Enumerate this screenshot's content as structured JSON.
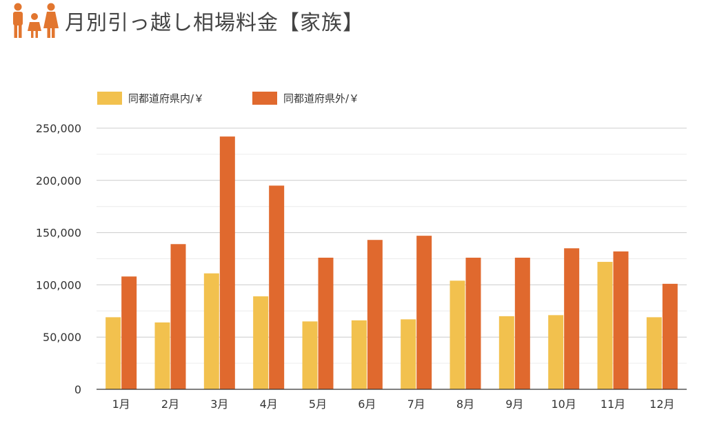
{
  "page": {
    "title": "月別引っ越し相場料金【家族】",
    "title_icon": "family-icon",
    "icon_color": "#e2762f"
  },
  "chart_data": {
    "type": "bar",
    "title": "月別引っ越し相場料金【家族】",
    "xlabel": "",
    "ylabel": "",
    "categories": [
      "1月",
      "2月",
      "3月",
      "4月",
      "5月",
      "6月",
      "7月",
      "8月",
      "9月",
      "10月",
      "11月",
      "12月"
    ],
    "series": [
      {
        "name": "同都道府県内/￥",
        "color": "#f2c14e",
        "values": [
          69000,
          64000,
          111000,
          89000,
          65000,
          66000,
          67000,
          104000,
          70000,
          71000,
          122000,
          69000
        ]
      },
      {
        "name": "同都道府県外/￥",
        "color": "#e0692e",
        "values": [
          108000,
          139000,
          242000,
          195000,
          126000,
          143000,
          147000,
          126000,
          126000,
          135000,
          132000,
          101000
        ]
      }
    ],
    "ylim": [
      0,
      250000
    ],
    "yticks": [
      0,
      50000,
      100000,
      150000,
      200000,
      250000
    ],
    "ytick_labels": [
      "0",
      "50,000",
      "100,000",
      "150,000",
      "200,000",
      "250,000"
    ],
    "grid": true,
    "minor_grid": true,
    "legend_position": "top-left"
  }
}
